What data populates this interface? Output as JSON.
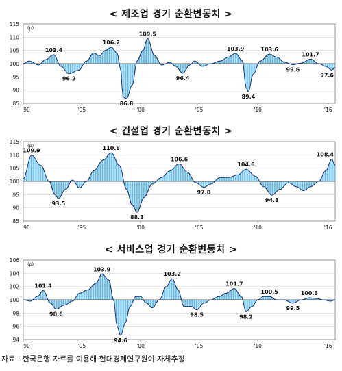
{
  "source": "자료 : 한국은행 자료를 이용해 현대경제연구원이 자체추정.",
  "chart_data": [
    {
      "type": "bar",
      "title": "< 제조업 경기 순환변동치 >",
      "unit": "(p)",
      "ylim": [
        85,
        115
      ],
      "yticks": [
        85,
        90,
        95,
        100,
        105,
        110,
        115
      ],
      "baseline": 100,
      "xlim": [
        1990,
        2016.6
      ],
      "xticks": [
        {
          "x": 1990,
          "label": "'90"
        },
        {
          "x": 1995,
          "label": "'95"
        },
        {
          "x": 2000,
          "label": "'00"
        },
        {
          "x": 2005,
          "label": "'05"
        },
        {
          "x": 2010,
          "label": "'10"
        },
        {
          "x": 2016,
          "label": "'16"
        }
      ],
      "grid": true,
      "knots": [
        [
          1990,
          100
        ],
        [
          1990.5,
          101
        ],
        [
          1991.3,
          99.5
        ],
        [
          1991.9,
          101.5
        ],
        [
          1992.6,
          103.4
        ],
        [
          1993.2,
          99
        ],
        [
          1993.9,
          96.2
        ],
        [
          1994.7,
          97.5
        ],
        [
          1995.4,
          101
        ],
        [
          1996,
          104
        ],
        [
          1996.5,
          103
        ],
        [
          1997,
          105
        ],
        [
          1997.5,
          106.2
        ],
        [
          1998,
          104
        ],
        [
          1998.3,
          98
        ],
        [
          1998.5,
          87.5
        ],
        [
          1998.8,
          86.8
        ],
        [
          1999.3,
          92
        ],
        [
          1999.7,
          101
        ],
        [
          2000.2,
          105
        ],
        [
          2000.6,
          109.5
        ],
        [
          2001.2,
          103
        ],
        [
          2001.8,
          99.5
        ],
        [
          2002.5,
          100.5
        ],
        [
          2003,
          99
        ],
        [
          2003.6,
          96.4
        ],
        [
          2004.2,
          99.5
        ],
        [
          2004.6,
          101
        ],
        [
          2005.3,
          99
        ],
        [
          2006,
          100
        ],
        [
          2006.8,
          101
        ],
        [
          2007.5,
          102.5
        ],
        [
          2008.1,
          103.9
        ],
        [
          2008.7,
          101
        ],
        [
          2009,
          91
        ],
        [
          2009.2,
          89.4
        ],
        [
          2009.6,
          96
        ],
        [
          2010.2,
          101
        ],
        [
          2011,
          103.6
        ],
        [
          2011.6,
          102.5
        ],
        [
          2012.3,
          100.5
        ],
        [
          2013,
          99.6
        ],
        [
          2013.7,
          100.2
        ],
        [
          2014.5,
          101.7
        ],
        [
          2015.2,
          100
        ],
        [
          2015.8,
          99
        ],
        [
          2016.3,
          97.6
        ],
        [
          2016.6,
          98.5
        ]
      ],
      "labels": [
        {
          "x": 1992.6,
          "y": 103.4,
          "text": "103.4",
          "pos": "above"
        },
        {
          "x": 1993.9,
          "y": 96.2,
          "text": "96.2",
          "pos": "below"
        },
        {
          "x": 1997.5,
          "y": 106.2,
          "text": "106.2",
          "pos": "above"
        },
        {
          "x": 1998.8,
          "y": 86.8,
          "text": "86.8",
          "pos": "below"
        },
        {
          "x": 2000.6,
          "y": 109.5,
          "text": "109.5",
          "pos": "above"
        },
        {
          "x": 2003.6,
          "y": 96.4,
          "text": "96.4",
          "pos": "below"
        },
        {
          "x": 2008.1,
          "y": 103.9,
          "text": "103.9",
          "pos": "above"
        },
        {
          "x": 2009.2,
          "y": 89.4,
          "text": "89.4",
          "pos": "below"
        },
        {
          "x": 2011.0,
          "y": 103.6,
          "text": "103.6",
          "pos": "above"
        },
        {
          "x": 2013.0,
          "y": 99.6,
          "text": "99.6",
          "pos": "below"
        },
        {
          "x": 2014.5,
          "y": 101.7,
          "text": "101.7",
          "pos": "above"
        },
        {
          "x": 2016.3,
          "y": 97.6,
          "text": "97.6",
          "pos": "below"
        }
      ]
    },
    {
      "type": "bar",
      "title": "< 건설업 경기 순환변동치 >",
      "unit": "(p)",
      "ylim": [
        85,
        115
      ],
      "yticks": [
        85,
        90,
        95,
        100,
        105,
        110,
        115
      ],
      "baseline": 100,
      "xlim": [
        1990,
        2016.6
      ],
      "xticks": [
        {
          "x": 1990,
          "label": "'90"
        },
        {
          "x": 1995,
          "label": "'95"
        },
        {
          "x": 2000,
          "label": "'00"
        },
        {
          "x": 2005,
          "label": "'05"
        },
        {
          "x": 2010,
          "label": "'10"
        },
        {
          "x": 2016,
          "label": "'16"
        }
      ],
      "grid": true,
      "knots": [
        [
          1990,
          101
        ],
        [
          1990.7,
          109.9
        ],
        [
          1991.5,
          106
        ],
        [
          1992.2,
          100
        ],
        [
          1992.7,
          95
        ],
        [
          1993,
          93.5
        ],
        [
          1993.6,
          97
        ],
        [
          1994.2,
          100.5
        ],
        [
          1994.8,
          97.5
        ],
        [
          1995.4,
          100
        ],
        [
          1996,
          104
        ],
        [
          1996.8,
          108
        ],
        [
          1997.5,
          110.8
        ],
        [
          1998.2,
          106
        ],
        [
          1998.8,
          97
        ],
        [
          1999.3,
          91
        ],
        [
          1999.7,
          88.3
        ],
        [
          2000.3,
          94
        ],
        [
          2001,
          99
        ],
        [
          2001.8,
          101.5
        ],
        [
          2002.5,
          104
        ],
        [
          2003.3,
          106.6
        ],
        [
          2004,
          103.5
        ],
        [
          2004.7,
          99.5
        ],
        [
          2005.4,
          97.8
        ],
        [
          2006,
          99
        ],
        [
          2006.8,
          101.5
        ],
        [
          2007.5,
          101.5
        ],
        [
          2008.3,
          102.5
        ],
        [
          2009,
          104.6
        ],
        [
          2009.8,
          102
        ],
        [
          2010.5,
          98
        ],
        [
          2011.2,
          94.8
        ],
        [
          2011.9,
          97
        ],
        [
          2012.6,
          99.5
        ],
        [
          2013.3,
          98
        ],
        [
          2013.9,
          96.5
        ],
        [
          2014.5,
          98
        ],
        [
          2015.2,
          100
        ],
        [
          2015.8,
          104
        ],
        [
          2016.3,
          108.4
        ],
        [
          2016.6,
          106
        ]
      ],
      "labels": [
        {
          "x": 1990.7,
          "y": 109.9,
          "text": "109.9",
          "pos": "above"
        },
        {
          "x": 1993.0,
          "y": 93.5,
          "text": "93.5",
          "pos": "below"
        },
        {
          "x": 1997.5,
          "y": 110.8,
          "text": "110.8",
          "pos": "above"
        },
        {
          "x": 1999.7,
          "y": 88.3,
          "text": "88.3",
          "pos": "below"
        },
        {
          "x": 2003.3,
          "y": 106.6,
          "text": "106.6",
          "pos": "above"
        },
        {
          "x": 2005.4,
          "y": 97.8,
          "text": "97.8",
          "pos": "below"
        },
        {
          "x": 2009.0,
          "y": 104.6,
          "text": "104.6",
          "pos": "above"
        },
        {
          "x": 2011.2,
          "y": 94.8,
          "text": "94.8",
          "pos": "below"
        },
        {
          "x": 2016.3,
          "y": 108.4,
          "text": "108.4",
          "pos": "above"
        }
      ]
    },
    {
      "type": "bar",
      "title": "< 서비스업 경기 순환변동치 >",
      "unit": "(p)",
      "ylim": [
        94,
        106
      ],
      "yticks": [
        94,
        96,
        98,
        100,
        102,
        104,
        106
      ],
      "baseline": 100,
      "xlim": [
        1990,
        2016.6
      ],
      "xticks": [
        {
          "x": 1990,
          "label": "'90"
        },
        {
          "x": 1995,
          "label": "'95"
        },
        {
          "x": 2000,
          "label": "'00"
        },
        {
          "x": 2005,
          "label": "'05"
        },
        {
          "x": 2010,
          "label": "'10"
        },
        {
          "x": 2016,
          "label": "'16"
        }
      ],
      "grid": true,
      "knots": [
        [
          1990,
          100
        ],
        [
          1990.6,
          99.8
        ],
        [
          1991.2,
          100.5
        ],
        [
          1991.7,
          101.4
        ],
        [
          1992.3,
          99.5
        ],
        [
          1992.8,
          98.6
        ],
        [
          1993.5,
          99.2
        ],
        [
          1994.2,
          99.8
        ],
        [
          1994.8,
          101
        ],
        [
          1995.5,
          101.5
        ],
        [
          1996.2,
          102.5
        ],
        [
          1996.7,
          103.9
        ],
        [
          1997.3,
          103
        ],
        [
          1997.7,
          100
        ],
        [
          1998,
          96
        ],
        [
          1998.3,
          94.6
        ],
        [
          1998.7,
          96.5
        ],
        [
          1999.1,
          99
        ],
        [
          1999.6,
          100.5
        ],
        [
          2000,
          100.5
        ],
        [
          2000.5,
          99.5
        ],
        [
          2001,
          98.8
        ],
        [
          2001.6,
          100
        ],
        [
          2002.2,
          102
        ],
        [
          2002.7,
          103.2
        ],
        [
          2003.2,
          101.5
        ],
        [
          2003.7,
          99
        ],
        [
          2004.3,
          99
        ],
        [
          2004.8,
          98.5
        ],
        [
          2005.4,
          99.5
        ],
        [
          2006,
          100
        ],
        [
          2006.7,
          100.5
        ],
        [
          2007.3,
          101
        ],
        [
          2008,
          101.7
        ],
        [
          2008.6,
          100.5
        ],
        [
          2009,
          98.2
        ],
        [
          2009.5,
          99
        ],
        [
          2010,
          100
        ],
        [
          2010.5,
          100.5
        ],
        [
          2011,
          100.5
        ],
        [
          2011.6,
          100
        ],
        [
          2012.2,
          100
        ],
        [
          2013,
          99.5
        ],
        [
          2013.7,
          100
        ],
        [
          2014.4,
          100.3
        ],
        [
          2015,
          100.2
        ],
        [
          2015.6,
          100
        ],
        [
          2016.2,
          99.8
        ],
        [
          2016.6,
          100
        ]
      ],
      "labels": [
        {
          "x": 1991.7,
          "y": 101.4,
          "text": "101.4",
          "pos": "above"
        },
        {
          "x": 1992.8,
          "y": 98.6,
          "text": "98.6",
          "pos": "below"
        },
        {
          "x": 1996.7,
          "y": 103.9,
          "text": "103.9",
          "pos": "above"
        },
        {
          "x": 1998.3,
          "y": 94.6,
          "text": "94.6",
          "pos": "below"
        },
        {
          "x": 2002.7,
          "y": 103.2,
          "text": "103.2",
          "pos": "above"
        },
        {
          "x": 2004.8,
          "y": 98.5,
          "text": "98.5",
          "pos": "below"
        },
        {
          "x": 2008.0,
          "y": 101.7,
          "text": "101.7",
          "pos": "above"
        },
        {
          "x": 2009.0,
          "y": 98.2,
          "text": "98.2",
          "pos": "below"
        },
        {
          "x": 2011.0,
          "y": 100.5,
          "text": "100.5",
          "pos": "above"
        },
        {
          "x": 2013.0,
          "y": 99.5,
          "text": "99.5",
          "pos": "below"
        },
        {
          "x": 2014.4,
          "y": 100.3,
          "text": "100.3",
          "pos": "above"
        }
      ]
    }
  ]
}
